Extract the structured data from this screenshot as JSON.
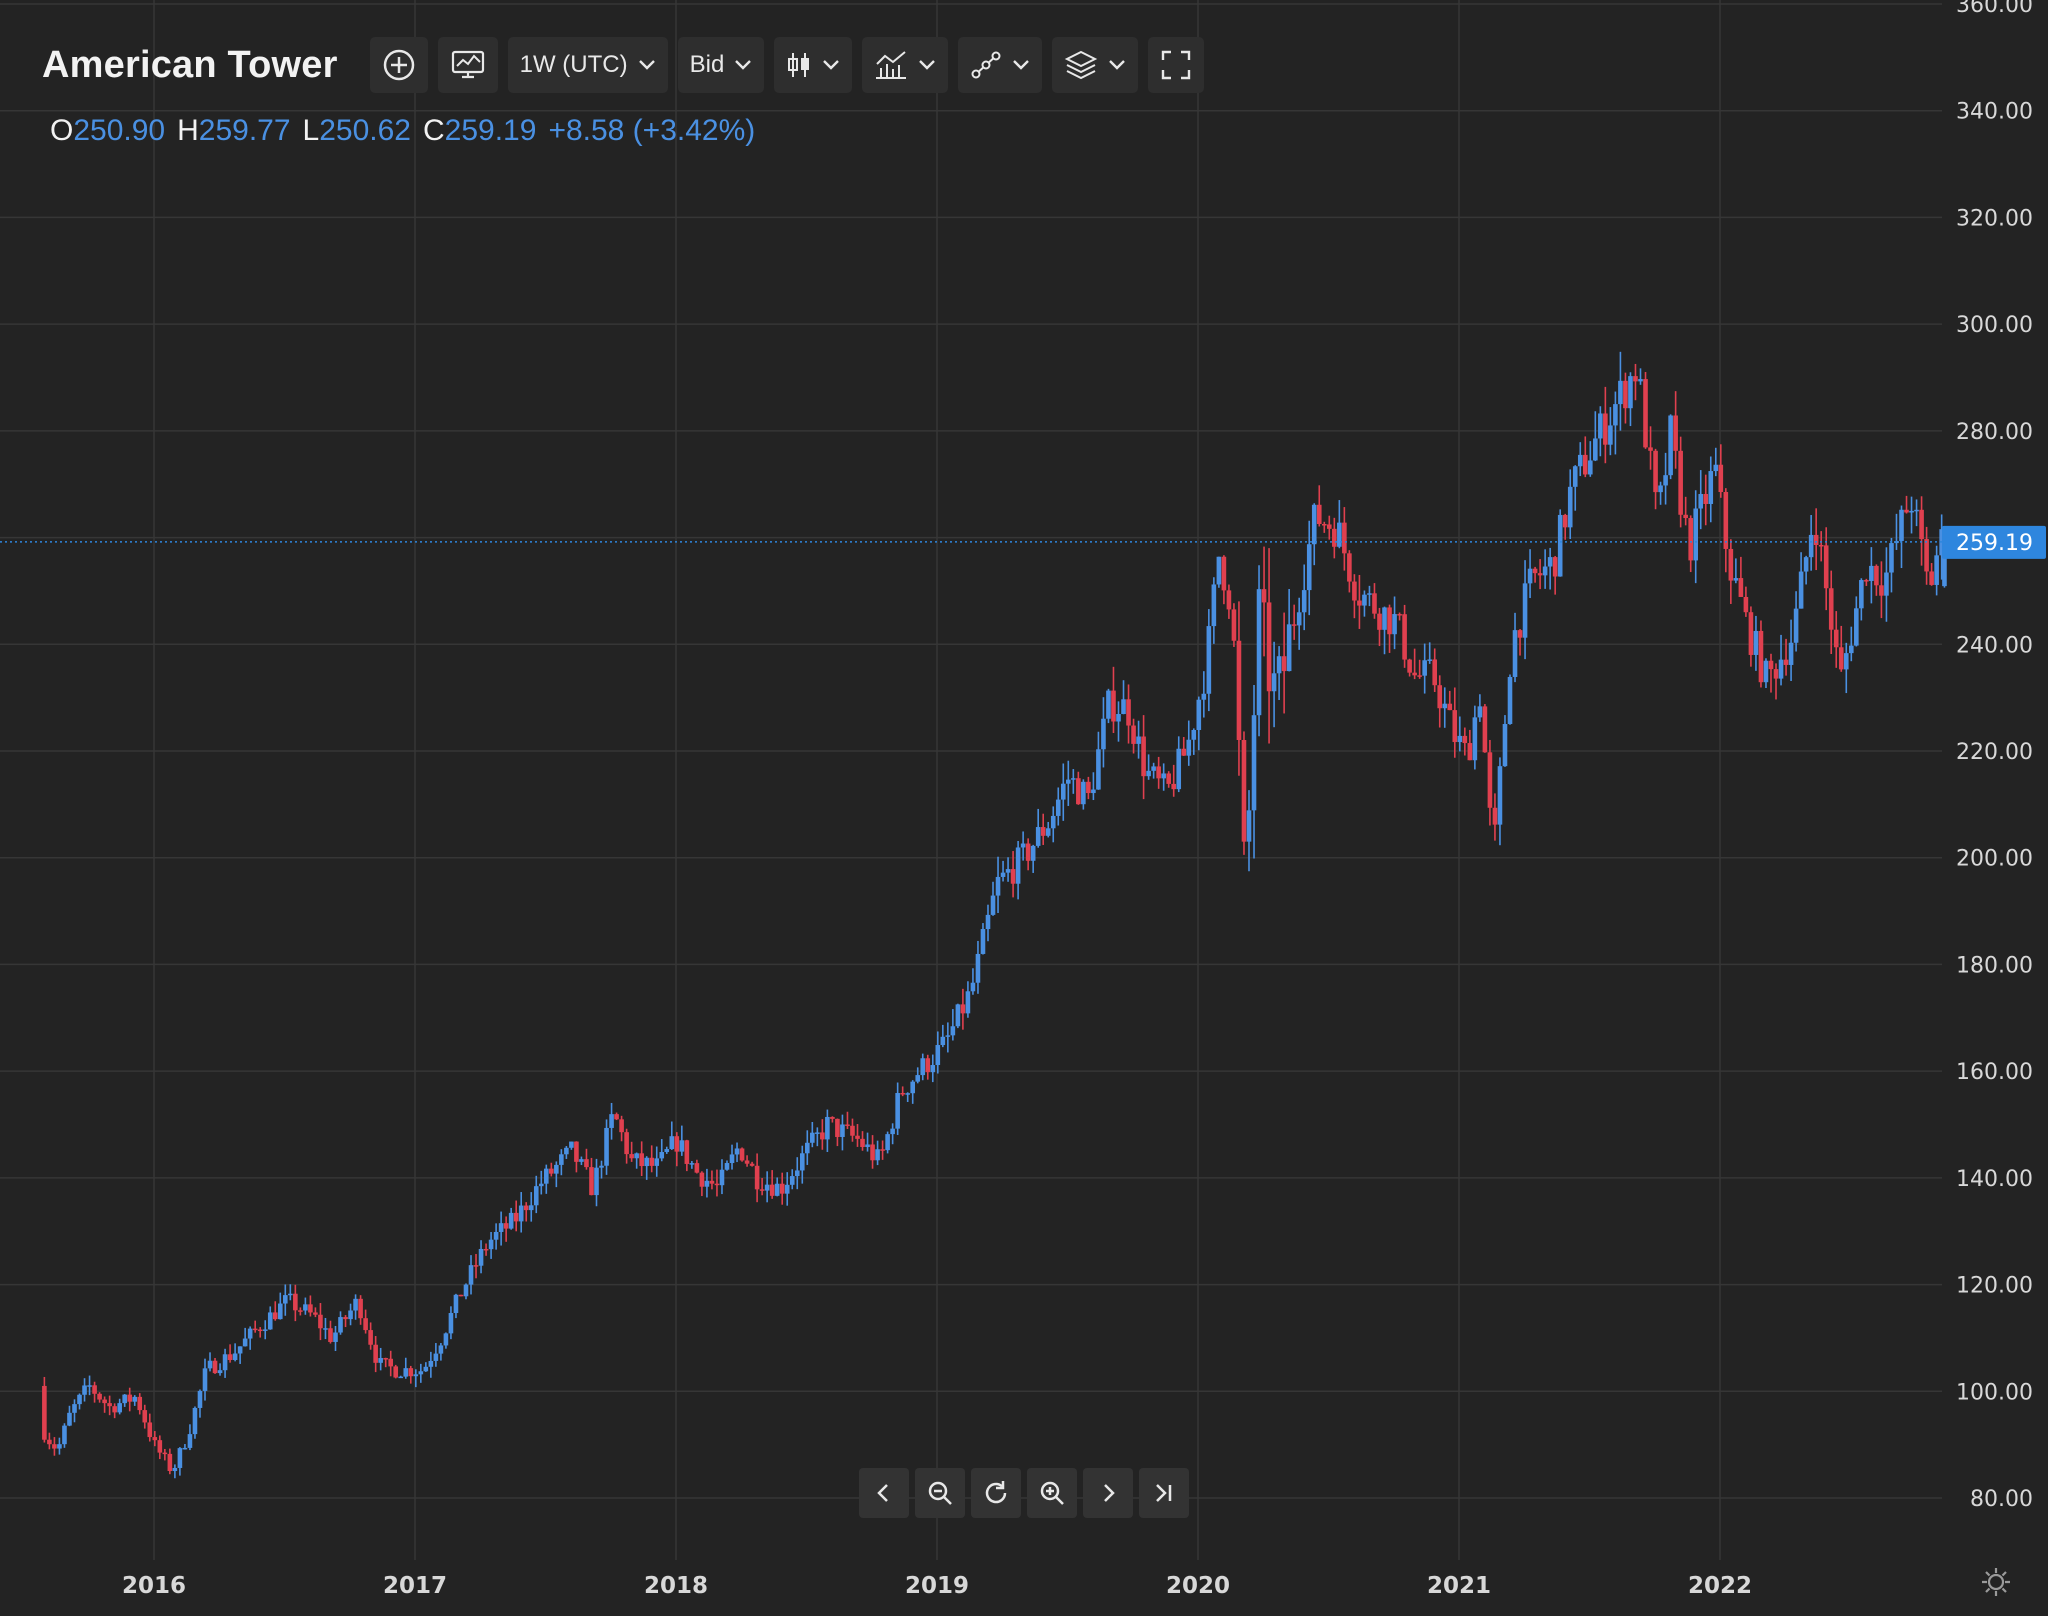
{
  "header": {
    "title": "American Tower",
    "interval_label": "1W (UTC)",
    "price_type_label": "Bid"
  },
  "ohlc": {
    "o_label": "O",
    "o_value": "250.90",
    "h_label": "H",
    "h_value": "259.77",
    "l_label": "L",
    "l_value": "250.62",
    "c_label": "C",
    "c_value": "259.19",
    "change": "+8.58 (+3.42%)"
  },
  "colors": {
    "background": "#232323",
    "up": "#4a90e2",
    "down": "#e0404f",
    "grid": "#363636",
    "axis_text": "#d8d8d8",
    "price_tag": "#2e86de"
  },
  "icons": [
    "add-circle-icon",
    "indicators-icon",
    "chevron-down-icon",
    "candles-icon",
    "chart-style-icon",
    "drawing-tools-icon",
    "layers-icon",
    "fullscreen-icon",
    "scroll-left-icon",
    "zoom-out-icon",
    "reset-icon",
    "zoom-in-icon",
    "scroll-right-icon",
    "go-to-latest-icon",
    "settings-icon"
  ],
  "chart_data": {
    "type": "candlestick",
    "title": "American Tower",
    "interval": "1W (UTC)",
    "current_price": 259.19,
    "current_price_label": "259.19",
    "ylim": [
      72,
      360
    ],
    "y_tick_labels": [
      "80.00",
      "100.00",
      "120.00",
      "140.00",
      "160.00",
      "180.00",
      "200.00",
      "220.00",
      "240.00",
      "260.00",
      "280.00",
      "300.00",
      "320.00",
      "340.00",
      "360.00"
    ],
    "x_tick_labels": [
      "2016",
      "2017",
      "2018",
      "2019",
      "2020",
      "2021",
      "2022"
    ],
    "x_range": [
      2015.58,
      2022.99
    ],
    "grid": true,
    "anchors": [
      [
        2015.58,
        101
      ],
      [
        2015.6,
        92
      ],
      [
        2015.65,
        89
      ],
      [
        2015.7,
        96
      ],
      [
        2015.77,
        101
      ],
      [
        2015.85,
        97
      ],
      [
        2015.95,
        99
      ],
      [
        2016.02,
        90
      ],
      [
        2016.09,
        85
      ],
      [
        2016.15,
        92
      ],
      [
        2016.22,
        104
      ],
      [
        2016.32,
        107
      ],
      [
        2016.42,
        112
      ],
      [
        2016.53,
        117
      ],
      [
        2016.63,
        114
      ],
      [
        2016.7,
        110
      ],
      [
        2016.8,
        117
      ],
      [
        2016.88,
        105
      ],
      [
        2016.95,
        104
      ],
      [
        2017.05,
        104
      ],
      [
        2017.12,
        110
      ],
      [
        2017.2,
        119
      ],
      [
        2017.3,
        128
      ],
      [
        2017.4,
        132
      ],
      [
        2017.5,
        139
      ],
      [
        2017.62,
        145
      ],
      [
        2017.7,
        138
      ],
      [
        2017.78,
        152
      ],
      [
        2017.85,
        143
      ],
      [
        2017.95,
        142
      ],
      [
        2018.02,
        147
      ],
      [
        2018.1,
        141
      ],
      [
        2018.18,
        138
      ],
      [
        2018.26,
        146
      ],
      [
        2018.33,
        140
      ],
      [
        2018.42,
        138
      ],
      [
        2018.52,
        145
      ],
      [
        2018.6,
        150
      ],
      [
        2018.72,
        147
      ],
      [
        2018.8,
        143
      ],
      [
        2018.88,
        156
      ],
      [
        2018.95,
        160
      ],
      [
        2019.05,
        165
      ],
      [
        2019.15,
        175
      ],
      [
        2019.25,
        195
      ],
      [
        2019.35,
        200
      ],
      [
        2019.45,
        207
      ],
      [
        2019.52,
        215
      ],
      [
        2019.6,
        211
      ],
      [
        2019.68,
        229
      ],
      [
        2019.75,
        228
      ],
      [
        2019.82,
        216
      ],
      [
        2019.9,
        212
      ],
      [
        2019.98,
        221
      ],
      [
        2020.05,
        236
      ],
      [
        2020.1,
        257
      ],
      [
        2020.15,
        247
      ],
      [
        2020.2,
        193
      ],
      [
        2020.25,
        245
      ],
      [
        2020.32,
        229
      ],
      [
        2020.4,
        248
      ],
      [
        2020.47,
        264
      ],
      [
        2020.55,
        262
      ],
      [
        2020.63,
        250
      ],
      [
        2020.7,
        247
      ],
      [
        2020.78,
        244
      ],
      [
        2020.85,
        234
      ],
      [
        2020.92,
        234
      ],
      [
        2021.0,
        223
      ],
      [
        2021.05,
        219
      ],
      [
        2021.1,
        231
      ],
      [
        2021.15,
        200
      ],
      [
        2021.22,
        240
      ],
      [
        2021.3,
        252
      ],
      [
        2021.38,
        255
      ],
      [
        2021.45,
        269
      ],
      [
        2021.53,
        277
      ],
      [
        2021.62,
        285
      ],
      [
        2021.7,
        292
      ],
      [
        2021.78,
        263
      ],
      [
        2021.83,
        279
      ],
      [
        2021.9,
        258
      ],
      [
        2022.0,
        273
      ],
      [
        2022.05,
        256
      ],
      [
        2022.12,
        244
      ],
      [
        2022.2,
        233
      ],
      [
        2022.3,
        242
      ],
      [
        2022.38,
        265
      ],
      [
        2022.48,
        233
      ],
      [
        2022.58,
        255
      ],
      [
        2022.65,
        252
      ],
      [
        2022.75,
        268
      ],
      [
        2022.82,
        250
      ],
      [
        2022.86,
        259.19
      ]
    ],
    "last_candle": {
      "open": 250.9,
      "high": 259.77,
      "low": 250.62,
      "close": 259.19
    }
  }
}
